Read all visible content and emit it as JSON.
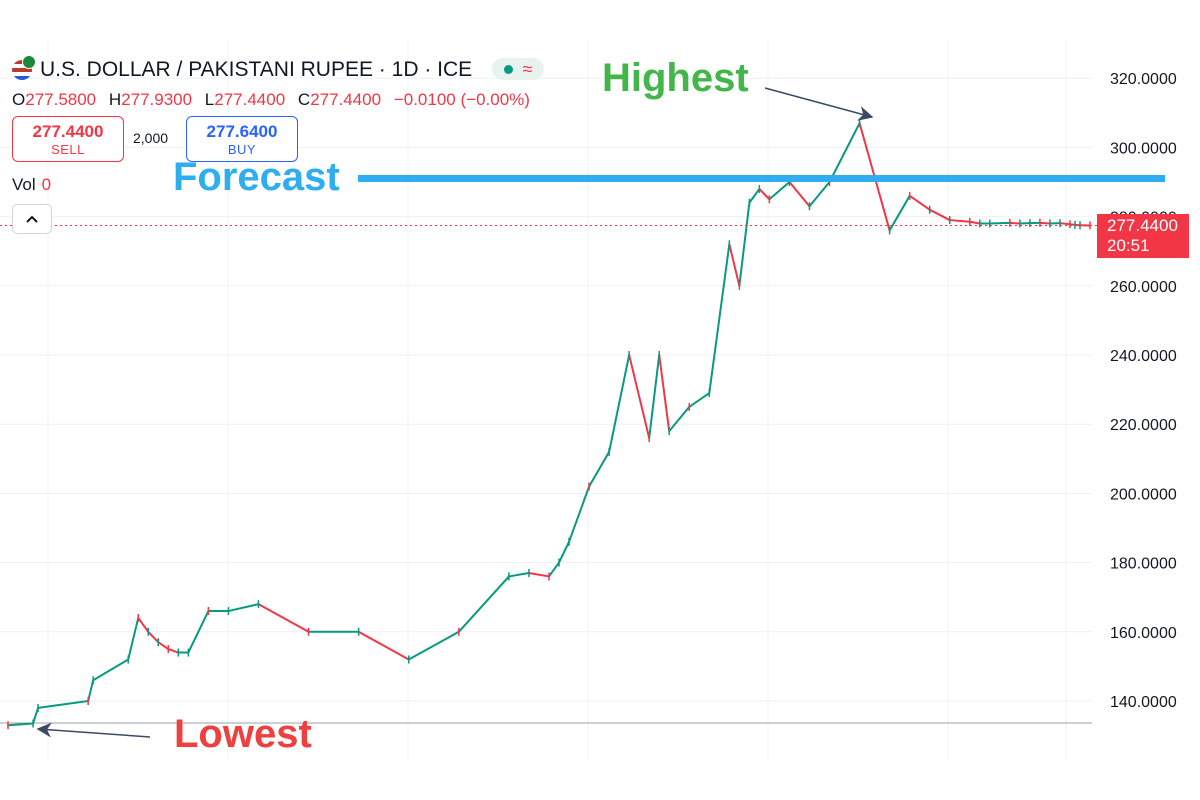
{
  "header": {
    "symbol_title": "U.S. DOLLAR / PAKISTANI RUPEE · 1D · ICE",
    "ohlc": [
      {
        "key": "O",
        "value": "277.5800"
      },
      {
        "key": "H",
        "value": "277.9300"
      },
      {
        "key": "L",
        "value": "277.4400"
      },
      {
        "key": "C",
        "value": "277.4400"
      }
    ],
    "change": "−0.0100 (−0.00%)",
    "sell_price": "277.4400",
    "sell_label": "SELL",
    "quantity": "2,000",
    "buy_price": "277.6400",
    "buy_label": "BUY",
    "vol_label": "Vol",
    "vol_value": "0",
    "collapse_icon": "chevron-up-icon"
  },
  "annotations": {
    "highest": "Highest",
    "forecast": "Forecast",
    "lowest": "Lowest"
  },
  "price_tag": {
    "price": "277.4400",
    "countdown": "20:51"
  },
  "colors": {
    "up": "#089981",
    "down": "#f23645",
    "forecast_line": "#2eaef0",
    "highest_text": "#43b54a",
    "lowest_text": "#ef4040",
    "arrow": "#3b4a66"
  },
  "chart_data": {
    "type": "line",
    "title": "U.S. DOLLAR / PAKISTANI RUPEE · 1D · ICE",
    "xlabel": "",
    "ylabel": "",
    "ylim": [
      127,
      336
    ],
    "y_ticks": [
      "140.0000",
      "160.0000",
      "180.0000",
      "200.0000",
      "220.0000",
      "240.0000",
      "260.0000",
      "280.0000",
      "300.0000",
      "320.0000"
    ],
    "y_tick_values": [
      140,
      160,
      180,
      200,
      220,
      240,
      260,
      280,
      300,
      320
    ],
    "grid": true,
    "last_price": 277.44,
    "forecast_level": 291,
    "highest": 307,
    "lowest": 133,
    "series": [
      {
        "x": [
          0,
          2.5,
          3,
          8,
          8.5,
          12,
          13,
          14,
          15,
          16,
          17,
          18,
          20,
          22,
          25,
          30,
          35,
          40,
          45,
          50,
          52,
          54,
          55,
          56,
          58,
          60,
          62,
          64,
          65,
          66,
          68,
          70,
          72,
          73,
          74,
          75,
          76,
          78,
          80,
          82,
          85,
          88,
          90,
          92,
          94,
          96,
          97,
          98,
          100,
          101,
          102,
          103,
          104,
          105,
          106,
          106.5,
          107,
          108
        ],
        "y": [
          133,
          133.5,
          138,
          140,
          146,
          152,
          164,
          160,
          157,
          155,
          154,
          154,
          166,
          166,
          168,
          160,
          160,
          152,
          160,
          176,
          177,
          176,
          180,
          186,
          202,
          212,
          240,
          216,
          240,
          218,
          225,
          229,
          272,
          260,
          284,
          288,
          285,
          290,
          283,
          290,
          307,
          276,
          286,
          282,
          279,
          278.5,
          278,
          278,
          278.2,
          278,
          278.1,
          278.2,
          278,
          278.1,
          277.8,
          277.6,
          277.5,
          277.44
        ]
      }
    ]
  }
}
